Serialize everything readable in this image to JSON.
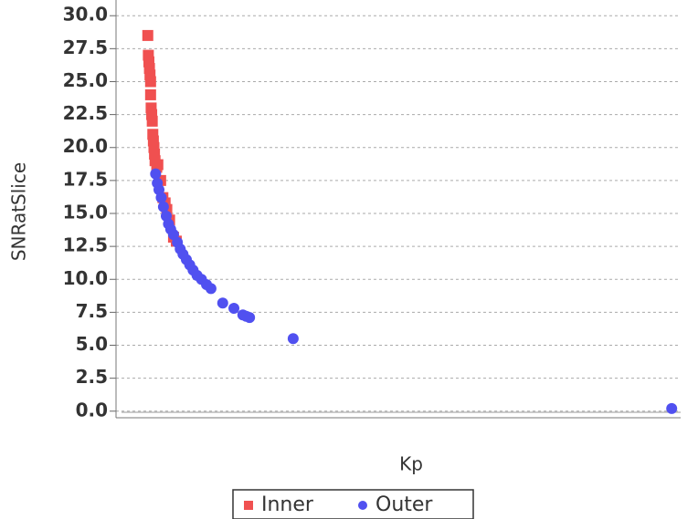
{
  "chart_data": {
    "type": "scatter",
    "xlabel": "Kp",
    "ylabel": "SNRatSlice",
    "xlim": [
      0,
      100
    ],
    "ylim": [
      -0.5,
      30.5
    ],
    "yticks": [
      {
        "value": 0,
        "label": "0.0"
      },
      {
        "value": 2.5,
        "label": "2.5"
      },
      {
        "value": 5,
        "label": "5.0"
      },
      {
        "value": 7.5,
        "label": "7.5"
      },
      {
        "value": 10,
        "label": "10.0"
      },
      {
        "value": 12.5,
        "label": "12.5"
      },
      {
        "value": 15,
        "label": "15.0"
      },
      {
        "value": 17.5,
        "label": "17.5"
      },
      {
        "value": 20,
        "label": "20.0"
      },
      {
        "value": 22.5,
        "label": "22.5"
      },
      {
        "value": 25,
        "label": "25.0"
      },
      {
        "value": 27.5,
        "label": "27.5"
      },
      {
        "value": 30,
        "label": "30.0"
      }
    ],
    "grid": true,
    "series": [
      {
        "name": "Inner",
        "color": "#f05050",
        "marker": "square",
        "x": [
          4.7,
          4.8,
          4.9,
          5.0,
          5.1,
          5.2,
          5.2,
          5.3,
          5.4,
          5.5,
          5.6,
          5.7,
          5.8,
          5.9,
          6.0,
          6.3,
          6.5,
          7.0,
          7.4,
          7.8,
          8.1,
          8.6,
          9.3,
          9.8
        ],
        "values": [
          28.5,
          27,
          26.5,
          26,
          25.5,
          25,
          24,
          23,
          22.5,
          22,
          21,
          20.5,
          20,
          19.5,
          19,
          18.5,
          18.7,
          17.5,
          16.2,
          15.8,
          15.3,
          14.5,
          13.2,
          12.9
        ]
      },
      {
        "name": "Outer",
        "color": "#5050f0",
        "marker": "circle",
        "x": [
          6.1,
          6.4,
          6.7,
          7.1,
          7.5,
          8.0,
          8.4,
          8.8,
          9.3,
          10.0,
          10.5,
          11.0,
          11.6,
          12.2,
          12.8,
          13.5,
          14.3,
          15.2,
          16.0,
          18.1,
          20.1,
          21.7,
          22.3,
          22.9,
          30.7,
          98.4
        ],
        "values": [
          18,
          17.3,
          16.8,
          16.2,
          15.5,
          14.8,
          14.2,
          13.8,
          13.4,
          12.8,
          12.3,
          11.9,
          11.5,
          11.1,
          10.7,
          10.3,
          10.0,
          9.6,
          9.3,
          8.2,
          7.8,
          7.3,
          7.2,
          7.1,
          5.5,
          0.2
        ]
      }
    ]
  }
}
